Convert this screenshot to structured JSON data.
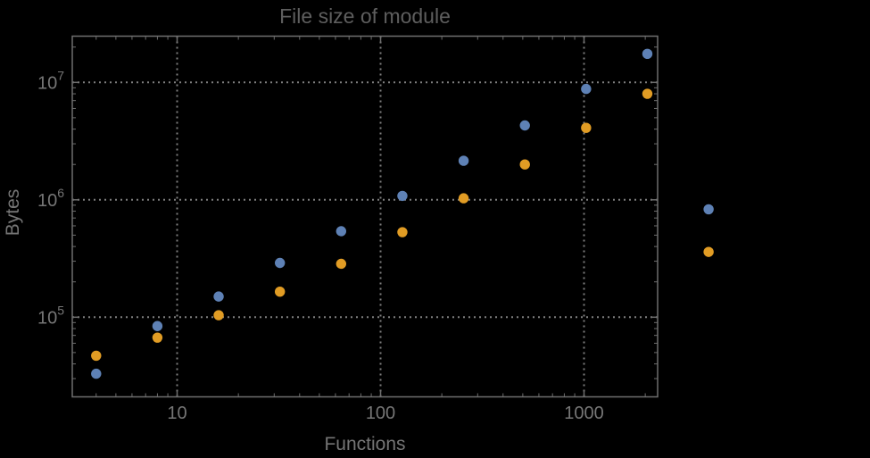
{
  "title": "File size of module",
  "colors": {
    "background": "#000000",
    "frame": "#6e6e6e",
    "grid": "#7f7f7f",
    "title_text": "#5e5e5e",
    "axis_label_text": "#757575",
    "tick_label_text": "#767676",
    "series_blue": "#5e81b5",
    "series_orange": "#e19c24"
  },
  "chart_data": {
    "type": "scatter",
    "title": "File size of module",
    "xlabel": "Functions",
    "ylabel": "Bytes",
    "x_scale": "log",
    "y_scale": "log",
    "grid": true,
    "legend": "none",
    "x": [
      4,
      8,
      16,
      32,
      64,
      128,
      256,
      512,
      1024,
      2048,
      4096
    ],
    "series": [
      {
        "name": "blue",
        "color": "#5e81b5",
        "values": [
          33000,
          84000,
          150000,
          290000,
          540000,
          1080000,
          2150000,
          4300000,
          8800000,
          17500000,
          830000
        ]
      },
      {
        "name": "orange",
        "color": "#e19c24",
        "values": [
          47000,
          67000,
          104000,
          165000,
          285000,
          530000,
          1030000,
          2000000,
          4100000,
          8000000,
          360000
        ]
      }
    ],
    "x_ticks": [
      10,
      100,
      1000
    ],
    "x_tick_labels": [
      "10",
      "100",
      "1000"
    ],
    "y_ticks": [
      100000,
      1000000,
      10000000
    ],
    "y_tick_base": "10",
    "y_tick_exponents": [
      "5",
      "6",
      "7"
    ],
    "xlim_log": [
      0.4846,
      3.3618
    ],
    "ylim_log": [
      4.3216,
      7.3939
    ]
  }
}
